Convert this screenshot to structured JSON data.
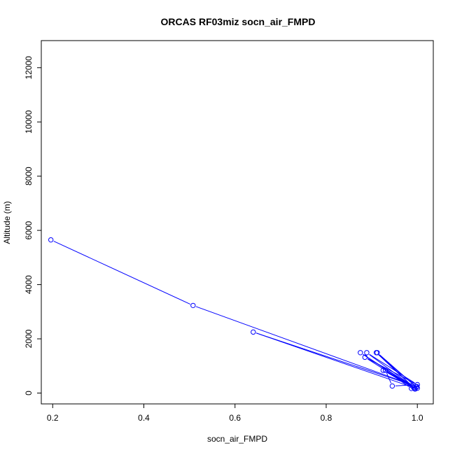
{
  "chart_data": {
    "type": "line",
    "title": "ORCAS RF03miz socn_air_FMPD",
    "xlabel": "socn_air_FMPD",
    "ylabel": "Altitude (m)",
    "xlim": [
      0.175,
      1.035
    ],
    "ylim": [
      -400,
      13000
    ],
    "x_ticks": [
      0.2,
      0.4,
      0.6,
      0.8,
      1.0
    ],
    "x_tick_labels": [
      "0.2",
      "0.4",
      "0.6",
      "0.8",
      "1.0"
    ],
    "y_ticks": [
      0,
      2000,
      4000,
      6000,
      8000,
      10000,
      12000
    ],
    "y_tick_labels": [
      "0",
      "2000",
      "4000",
      "6000",
      "8000",
      "10000",
      "12000"
    ],
    "grid": false,
    "series": [
      {
        "color": "#0000ff",
        "marker": "open-circle",
        "x": [
          0.196,
          0.508,
          0.999,
          0.64,
          0.992,
          0.875,
          0.988,
          0.889,
          1.0,
          0.885,
          0.995,
          0.91,
          0.998,
          0.912,
          0.994,
          0.925,
          0.99,
          0.945,
          0.93,
          0.987,
          1.0
        ],
        "y": [
          5650,
          3230,
          240,
          2250,
          200,
          1490,
          270,
          1490,
          310,
          1320,
          150,
          1490,
          220,
          1490,
          170,
          840,
          300,
          260,
          840,
          170,
          180
        ]
      }
    ]
  }
}
